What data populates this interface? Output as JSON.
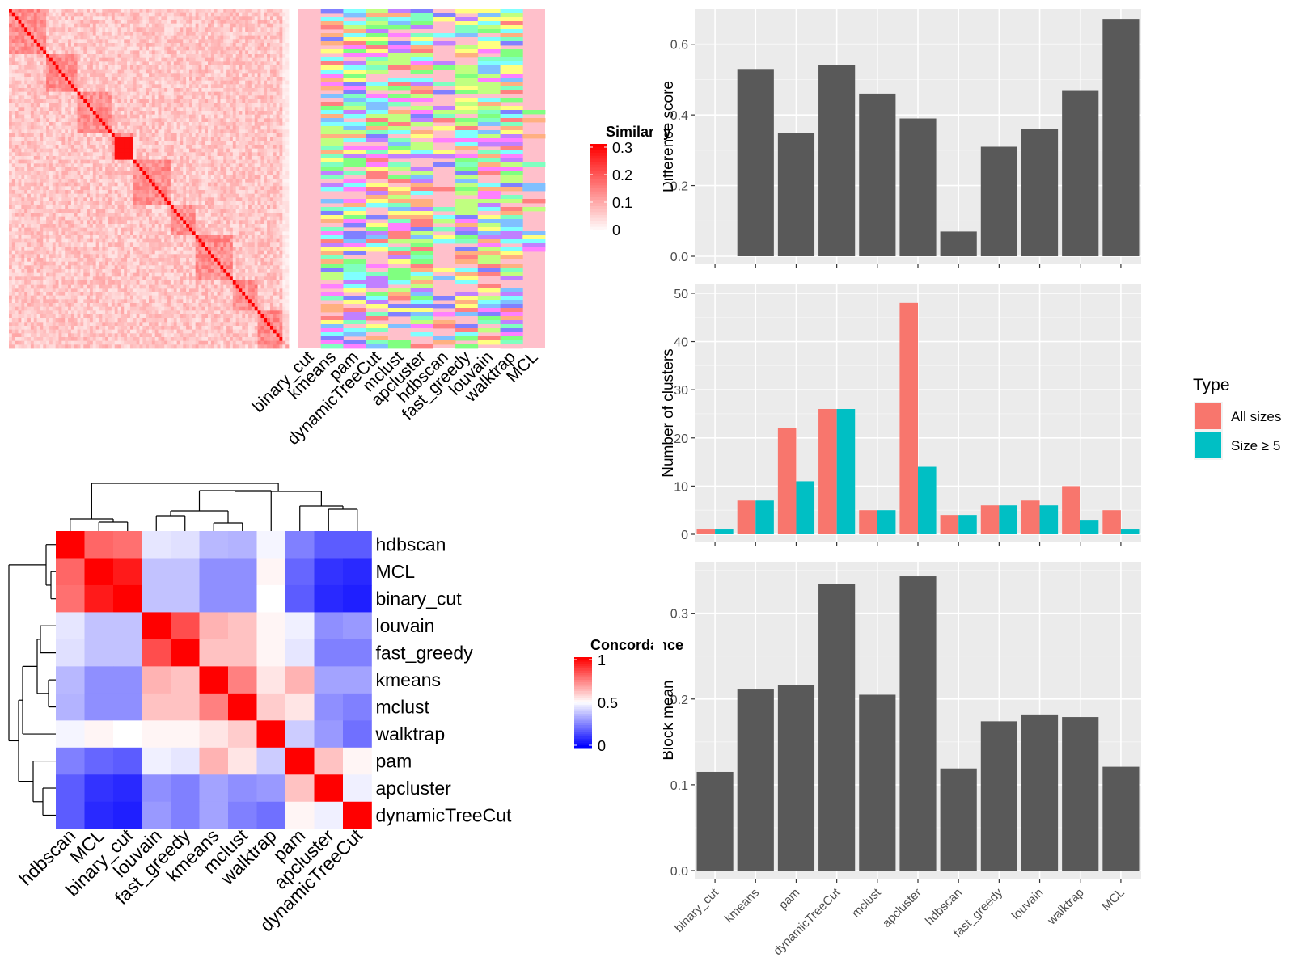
{
  "methods": [
    "binary_cut",
    "kmeans",
    "pam",
    "dynamicTreeCut",
    "mclust",
    "apcluster",
    "hdbscan",
    "fast_greedy",
    "louvain",
    "walktrap",
    "MCL"
  ],
  "palette": {
    "panel_bg": "#EBEBEB",
    "grid": "#FFFFFF",
    "bar_dark": "#595959",
    "all_sizes": "#F8766D",
    "size_ge5": "#00BFC4",
    "heat_high": "#FF0000",
    "heat_low": "#0000FF",
    "label_pink": "#FFC0CB",
    "class_colors": [
      "#FFC0CB",
      "#FFFF80",
      "#80FF80",
      "#80FFFF",
      "#8080FF",
      "#FF80FF",
      "#FF8080",
      "#C080FF",
      "#80C0FF",
      "#FFB080",
      "#80FFC0",
      "#C0FF80"
    ]
  },
  "similarity_heatmap": {
    "legend_title": "Similarity",
    "legend_ticks": [
      "0.3",
      "0.2",
      "0.1",
      "0"
    ],
    "column_labels": [
      "binary_cut",
      "kmeans",
      "pam",
      "dynamicTreeCut",
      "mclust",
      "apcluster",
      "hdbscan",
      "fast_greedy",
      "louvain",
      "walktrap",
      "MCL"
    ]
  },
  "concordance_heatmap": {
    "legend_title": "Concordance",
    "legend_ticks": [
      "1",
      "0.5",
      "0"
    ],
    "order": [
      "hdbscan",
      "MCL",
      "binary_cut",
      "louvain",
      "fast_greedy",
      "kmeans",
      "mclust",
      "walktrap",
      "pam",
      "apcluster",
      "dynamicTreeCut"
    ],
    "matrix": [
      [
        1.0,
        0.8,
        0.78,
        0.45,
        0.44,
        0.36,
        0.35,
        0.48,
        0.25,
        0.18,
        0.18
      ],
      [
        0.8,
        1.0,
        0.95,
        0.38,
        0.38,
        0.28,
        0.28,
        0.52,
        0.2,
        0.1,
        0.08
      ],
      [
        0.78,
        0.95,
        1.0,
        0.38,
        0.38,
        0.28,
        0.28,
        0.5,
        0.18,
        0.08,
        0.06
      ],
      [
        0.45,
        0.38,
        0.38,
        1.0,
        0.85,
        0.65,
        0.62,
        0.52,
        0.47,
        0.28,
        0.3
      ],
      [
        0.44,
        0.38,
        0.38,
        0.85,
        1.0,
        0.62,
        0.62,
        0.52,
        0.45,
        0.25,
        0.25
      ],
      [
        0.36,
        0.28,
        0.28,
        0.65,
        0.62,
        1.0,
        0.75,
        0.55,
        0.65,
        0.32,
        0.32
      ],
      [
        0.35,
        0.28,
        0.28,
        0.62,
        0.62,
        0.75,
        1.0,
        0.6,
        0.55,
        0.28,
        0.25
      ],
      [
        0.48,
        0.52,
        0.5,
        0.52,
        0.52,
        0.55,
        0.6,
        1.0,
        0.4,
        0.3,
        0.22
      ],
      [
        0.25,
        0.2,
        0.18,
        0.47,
        0.45,
        0.65,
        0.55,
        0.4,
        1.0,
        0.62,
        0.52
      ],
      [
        0.18,
        0.1,
        0.08,
        0.28,
        0.25,
        0.32,
        0.28,
        0.3,
        0.62,
        1.0,
        0.47
      ],
      [
        0.18,
        0.08,
        0.06,
        0.3,
        0.25,
        0.32,
        0.25,
        0.22,
        0.52,
        0.47,
        1.0
      ]
    ]
  },
  "chart_data": [
    {
      "type": "bar",
      "categories": [
        "binary_cut",
        "kmeans",
        "pam",
        "dynamicTreeCut",
        "mclust",
        "apcluster",
        "hdbscan",
        "fast_greedy",
        "louvain",
        "walktrap",
        "MCL"
      ],
      "values": [
        0.0,
        0.53,
        0.35,
        0.54,
        0.46,
        0.39,
        0.07,
        0.31,
        0.36,
        0.47,
        0.67
      ],
      "ylabel": "Difference score",
      "ylim": [
        0,
        0.7
      ],
      "yticks": [
        "0.0",
        "0.2",
        "0.4",
        "0.6"
      ],
      "grid": true
    },
    {
      "type": "bar",
      "categories": [
        "binary_cut",
        "kmeans",
        "pam",
        "dynamicTreeCut",
        "mclust",
        "apcluster",
        "hdbscan",
        "fast_greedy",
        "louvain",
        "walktrap",
        "MCL"
      ],
      "series": [
        {
          "name": "All sizes",
          "values": [
            1,
            7,
            22,
            26,
            5,
            48,
            4,
            6,
            7,
            10,
            5
          ]
        },
        {
          "name": "Size ≥ 5",
          "values": [
            1,
            7,
            11,
            26,
            5,
            14,
            4,
            6,
            6,
            3,
            1
          ]
        }
      ],
      "ylabel": "Number of clusters",
      "ylim": [
        0,
        52
      ],
      "yticks": [
        "0",
        "10",
        "20",
        "30",
        "40",
        "50"
      ],
      "legend_title": "Type",
      "legend_position": "right",
      "grid": true
    },
    {
      "type": "bar",
      "categories": [
        "binary_cut",
        "kmeans",
        "pam",
        "dynamicTreeCut",
        "mclust",
        "apcluster",
        "hdbscan",
        "fast_greedy",
        "louvain",
        "walktrap",
        "MCL"
      ],
      "values": [
        0.115,
        0.212,
        0.216,
        0.334,
        0.205,
        0.343,
        0.119,
        0.174,
        0.182,
        0.179,
        0.121
      ],
      "ylabel": "Block mean",
      "ylim": [
        0,
        0.36
      ],
      "yticks": [
        "0.0",
        "0.1",
        "0.2",
        "0.3"
      ],
      "grid": true
    }
  ]
}
